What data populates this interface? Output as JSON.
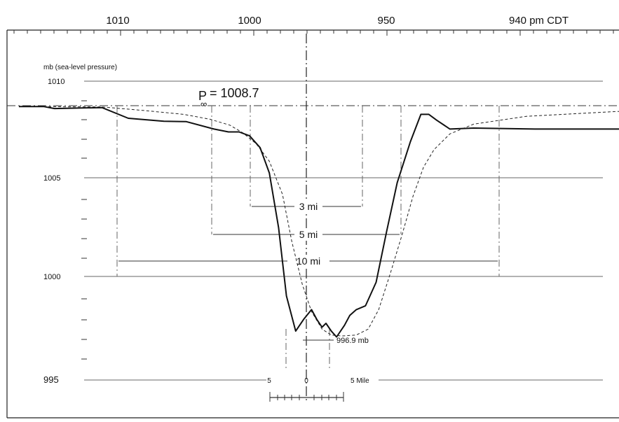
{
  "chart_data": {
    "type": "line",
    "top_axis": {
      "tick_labels": [
        "1010",
        "1000",
        "950",
        "940 pm CDT"
      ],
      "tick_values": [
        1010,
        1000,
        950,
        940
      ]
    },
    "ylabel": "mb (sea-level pressure)",
    "y_tick_labels": [
      "1010",
      "1005",
      "1000",
      "995"
    ],
    "ylim": [
      995,
      1011
    ],
    "p_inf_label": "P",
    "p_inf_subscript": "∞",
    "p_inf_value_text": "= 1008.7",
    "p_inf_value": 1008.7,
    "diameter_labels": [
      "3 mi",
      "5 mi",
      "10 mi"
    ],
    "min_label": "996.9 mb",
    "min_value": 996.9,
    "scale_labels": [
      "5",
      "0",
      "5 Mile"
    ],
    "series": [
      {
        "style": "observed",
        "x": [
          1017.5,
          1015.6,
          1014.8,
          1011.2,
          1009.2,
          1006.5,
          1004.8,
          1002.7,
          1001.6,
          1000.8,
          1000.0,
          999.2,
          998.5,
          997.8,
          997.2,
          996.5,
          995.9,
          995.3,
          994.9,
          994.5,
          994.2,
          993.8,
          993.4,
          992.8,
          992.4,
          991.9,
          991.2,
          990.4,
          989.6,
          988.8,
          987.8,
          987.0,
          986.4,
          985.8,
          984.8,
          983.0,
          978.1,
          970.0,
          962.0,
          955.0,
          948.4,
          942.0,
          938.1,
          934.0,
          929.0,
          925.3
        ],
        "y": [
          1008.7,
          1008.7,
          1008.6,
          1008.65,
          1008.1,
          1007.95,
          1007.93,
          1007.55,
          1007.4,
          1007.4,
          1007.2,
          1006.6,
          1005.3,
          1002.5,
          999.0,
          997.2,
          997.8,
          998.3,
          997.8,
          997.4,
          997.6,
          997.2,
          996.9,
          997.5,
          998.0,
          998.3,
          998.5,
          999.7,
          1002.3,
          1004.8,
          1006.9,
          1008.3,
          1008.3,
          1008.0,
          1007.55,
          1007.6,
          1007.55,
          1007.55,
          1007.4,
          1007.25,
          1007.3,
          1007.75,
          1008.15,
          1008.45,
          1008.7,
          1008.75
        ]
      },
      {
        "style": "model-dashed",
        "x": [
          1017.5,
          1011.2,
          1008.0,
          1005.0,
          1003.0,
          1001.5,
          1000.5,
          999.5,
          998.5,
          997.5,
          996.8,
          996.0,
          995.3,
          994.5,
          993.8,
          993.0,
          991.9,
          991.0,
          990.2,
          989.3,
          988.4,
          987.6,
          986.8,
          986.0,
          984.8,
          983.0,
          979.0,
          972.0,
          962.0,
          950.0,
          938.0,
          925.3
        ],
        "y": [
          1008.7,
          1008.68,
          1008.5,
          1008.3,
          1008.05,
          1007.75,
          1007.35,
          1006.8,
          1005.9,
          1004.2,
          1001.8,
          999.6,
          998.2,
          997.3,
          997.0,
          996.95,
          997.0,
          997.3,
          998.3,
          1000.2,
          1002.2,
          1004.1,
          1005.6,
          1006.5,
          1007.3,
          1007.8,
          1008.2,
          1008.45,
          1008.58,
          1008.65,
          1008.7,
          1008.7
        ]
      }
    ]
  }
}
